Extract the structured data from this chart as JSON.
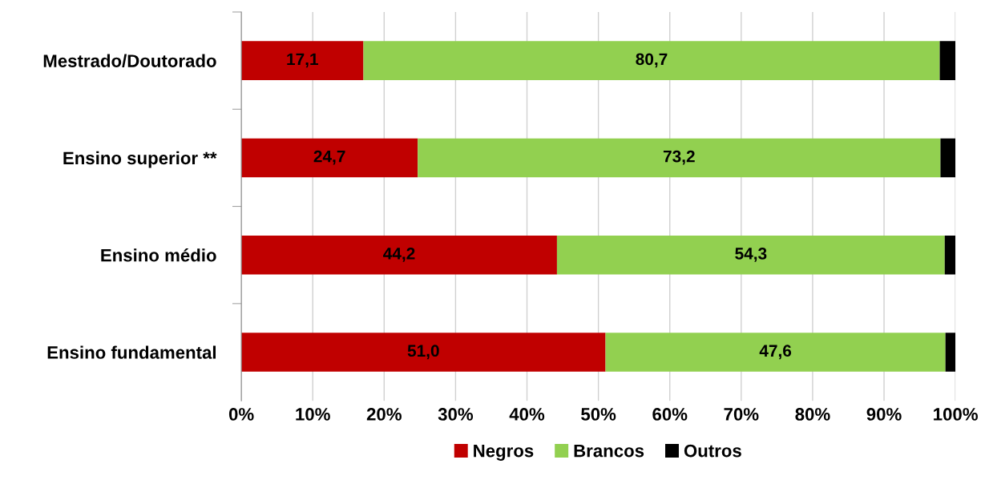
{
  "chart_data": {
    "type": "bar",
    "orientation": "horizontal",
    "stacked": true,
    "categories": [
      "Mestrado/Doutorado",
      "Ensino superior **",
      "Ensino médio",
      "Ensino fundamental"
    ],
    "series": [
      {
        "name": "Negros",
        "color": "#c00000",
        "values": [
          17.1,
          24.7,
          44.2,
          51.0
        ],
        "value_labels": [
          "17,1",
          "24,7",
          "44,2",
          "51,0"
        ]
      },
      {
        "name": "Brancos",
        "color": "#92d050",
        "values": [
          80.7,
          73.2,
          54.3,
          47.6
        ],
        "value_labels": [
          "80,7",
          "73,2",
          "54,3",
          "47,6"
        ]
      },
      {
        "name": "Outros",
        "color": "#000000",
        "values": [
          2.2,
          2.1,
          1.5,
          1.4
        ]
      }
    ],
    "xlim": [
      0,
      100
    ],
    "xticks": [
      {
        "value": 0,
        "label": "0%"
      },
      {
        "value": 10,
        "label": "10%"
      },
      {
        "value": 20,
        "label": "20%"
      },
      {
        "value": 30,
        "label": "30%"
      },
      {
        "value": 40,
        "label": "40%"
      },
      {
        "value": 50,
        "label": "50%"
      },
      {
        "value": 60,
        "label": "60%"
      },
      {
        "value": 70,
        "label": "70%"
      },
      {
        "value": 80,
        "label": "80%"
      },
      {
        "value": 90,
        "label": "90%"
      },
      {
        "value": 100,
        "label": "100%"
      }
    ],
    "grid": "x",
    "legend": "bottom"
  }
}
